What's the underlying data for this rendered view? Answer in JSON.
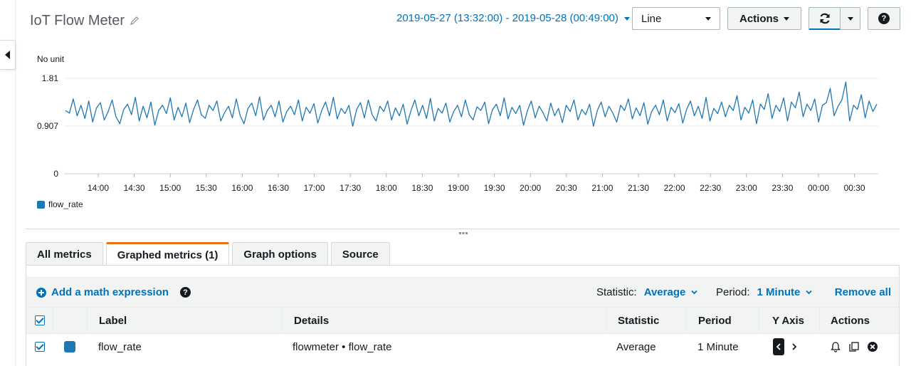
{
  "header": {
    "title": "IoT Flow Meter",
    "date_range": "2019-05-27 (13:32:00) - 2019-05-28 (00:49:00)",
    "graph_type": "Line",
    "actions_label": "Actions",
    "help_label": "?"
  },
  "chart_data": {
    "type": "line",
    "ylabel": "No unit",
    "y_ticks": [
      "1.81",
      "0.907",
      "0"
    ],
    "ylim": [
      0,
      1.81
    ],
    "x_ticks": [
      "14:00",
      "14:30",
      "15:00",
      "15:30",
      "16:00",
      "16:30",
      "17:00",
      "17:30",
      "18:00",
      "18:30",
      "19:00",
      "19:30",
      "20:00",
      "20:30",
      "21:00",
      "21:30",
      "22:00",
      "22:30",
      "23:00",
      "23:30",
      "00:00",
      "00:30"
    ],
    "x_range": [
      "13:32",
      "00:49"
    ],
    "grid": true,
    "legend_position": "bottom-left",
    "series": [
      {
        "name": "flow_rate",
        "color": "#1f77b4",
        "values": [
          1.2,
          1.15,
          1.42,
          1.1,
          1.3,
          1.05,
          1.38,
          0.98,
          1.25,
          1.35,
          1.02,
          1.18,
          1.4,
          1.08,
          0.95,
          1.22,
          1.32,
          1.12,
          1.45,
          1.0,
          1.28,
          1.06,
          1.36,
          0.92,
          1.2,
          1.3,
          1.14,
          1.44,
          1.02,
          1.26,
          1.08,
          1.34,
          0.97,
          1.22,
          1.4,
          1.12,
          1.05,
          1.3,
          1.2,
          1.38,
          1.0,
          1.16,
          1.28,
          1.06,
          1.42,
          1.1,
          0.95,
          1.24,
          1.34,
          1.1,
          1.46,
          1.02,
          1.2,
          1.3,
          1.08,
          1.38,
          0.98,
          1.18,
          1.28,
          1.12,
          1.4,
          1.0,
          1.26,
          1.15,
          1.33,
          0.96,
          1.2,
          1.36,
          1.1,
          1.45,
          1.04,
          1.24,
          1.14,
          1.3,
          0.9,
          1.22,
          1.35,
          1.06,
          1.4,
          1.12,
          1.0,
          1.28,
          1.18,
          1.38,
          1.02,
          1.25,
          1.1,
          1.32,
          0.94,
          1.2,
          1.4,
          1.1,
          1.3,
          1.05,
          1.43,
          1.0,
          1.24,
          1.15,
          1.34,
          0.98,
          1.18,
          1.3,
          1.08,
          1.4,
          1.12,
          1.02,
          1.27,
          1.2,
          1.36,
          0.95,
          1.22,
          1.32,
          1.1,
          1.44,
          1.04,
          1.26,
          1.14,
          1.3,
          0.92,
          1.2,
          1.38,
          1.06,
          1.28,
          1.16,
          1.0,
          1.34,
          1.1,
          1.24,
          0.97,
          1.3,
          1.18,
          1.4,
          1.02,
          1.22,
          1.12,
          1.32,
          0.9,
          1.2,
          1.36,
          1.08,
          1.28,
          1.15,
          0.98,
          1.3,
          1.2,
          1.42,
          1.04,
          1.25,
          1.1,
          1.35,
          0.94,
          1.18,
          1.3,
          1.12,
          1.4,
          1.0,
          1.26,
          1.16,
          1.33,
          0.96,
          1.22,
          1.38,
          1.1,
          1.28,
          1.05,
          1.45,
          1.0,
          1.24,
          1.14,
          1.36,
          1.08,
          1.3,
          1.2,
          1.48,
          1.02,
          1.26,
          1.15,
          1.4,
          0.95,
          1.32,
          1.22,
          1.52,
          1.05,
          1.3,
          1.18,
          1.44,
          1.0,
          1.36,
          1.25,
          1.55,
          1.08,
          1.32,
          1.2,
          1.42,
          0.98,
          1.3,
          1.35,
          1.62,
          1.1,
          1.28,
          1.4,
          1.74,
          1.0,
          1.3,
          1.22,
          1.5,
          1.06,
          1.38,
          1.18,
          1.32
        ]
      }
    ]
  },
  "legend": {
    "series_label": "flow_rate"
  },
  "tabs": [
    {
      "label": "All metrics"
    },
    {
      "label": "Graphed metrics (1)"
    },
    {
      "label": "Graph options"
    },
    {
      "label": "Source"
    }
  ],
  "toolbar": {
    "add_math_label": "Add a math expression",
    "statistic_label": "Statistic:",
    "statistic_value": "Average",
    "period_label": "Period:",
    "period_value": "1 Minute",
    "remove_all_label": "Remove all"
  },
  "table": {
    "headers": {
      "label": "Label",
      "details": "Details",
      "statistic": "Statistic",
      "period": "Period",
      "y_axis": "Y Axis",
      "actions": "Actions"
    },
    "rows": [
      {
        "label": "flow_rate",
        "details": "flowmeter • flow_rate",
        "statistic": "Average",
        "period": "1 Minute",
        "color": "#1f77b4"
      }
    ]
  }
}
